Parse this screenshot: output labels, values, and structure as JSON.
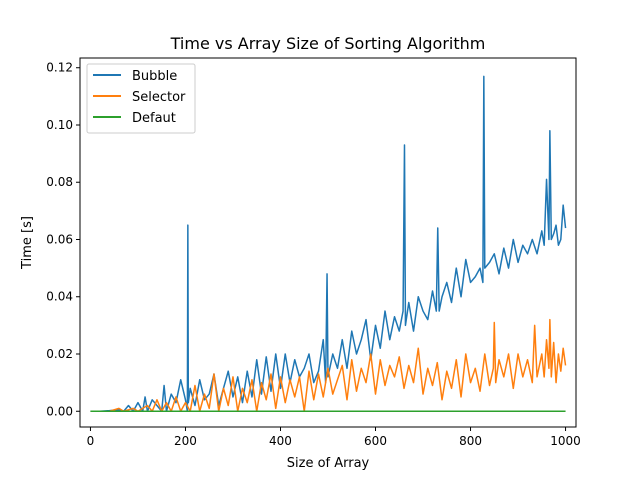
{
  "chart_data": {
    "type": "line",
    "title": "Time vs Array Size of Sorting Algorithm",
    "xlabel": "Size of Array",
    "ylabel": "Time [s]",
    "xlim": [
      -22,
      1022
    ],
    "ylim": [
      -0.0055,
      0.1234
    ],
    "xticks": [
      {
        "value": 0,
        "label": "0"
      },
      {
        "value": 200,
        "label": "200"
      },
      {
        "value": 400,
        "label": "400"
      },
      {
        "value": 600,
        "label": "600"
      },
      {
        "value": 800,
        "label": "800"
      },
      {
        "value": 1000,
        "label": "1000"
      }
    ],
    "yticks": [
      {
        "value": 0.0,
        "label": "0.00"
      },
      {
        "value": 0.02,
        "label": "0.02"
      },
      {
        "value": 0.04,
        "label": "0.04"
      },
      {
        "value": 0.06,
        "label": "0.06"
      },
      {
        "value": 0.08,
        "label": "0.08"
      },
      {
        "value": 0.1,
        "label": "0.10"
      },
      {
        "value": 0.12,
        "label": "0.12"
      }
    ],
    "grid": false,
    "legend_position": "top-left",
    "series": [
      {
        "name": "Bubble",
        "color": "#1f77b4",
        "points": [
          [
            0,
            0
          ],
          [
            20,
            0
          ],
          [
            40,
            0.0002
          ],
          [
            60,
            0.0005
          ],
          [
            70,
            0
          ],
          [
            80,
            0.002
          ],
          [
            90,
            0
          ],
          [
            100,
            0.003
          ],
          [
            110,
            0
          ],
          [
            115,
            0.005
          ],
          [
            120,
            0
          ],
          [
            130,
            0.004
          ],
          [
            140,
            0.002
          ],
          [
            150,
            0
          ],
          [
            155,
            0.009
          ],
          [
            160,
            0
          ],
          [
            170,
            0.006
          ],
          [
            180,
            0.003
          ],
          [
            190,
            0.011
          ],
          [
            200,
            0.004
          ],
          [
            204,
            0
          ],
          [
            205,
            0.065
          ],
          [
            206,
            0.003
          ],
          [
            210,
            0.008
          ],
          [
            220,
            0.002
          ],
          [
            230,
            0.011
          ],
          [
            240,
            0.004
          ],
          [
            250,
            0.006
          ],
          [
            260,
            0.013
          ],
          [
            270,
            0.002
          ],
          [
            280,
            0.008
          ],
          [
            290,
            0.014
          ],
          [
            300,
            0.005
          ],
          [
            310,
            0.012
          ],
          [
            320,
            0.003
          ],
          [
            330,
            0.014
          ],
          [
            340,
            0.005
          ],
          [
            350,
            0.018
          ],
          [
            360,
            0.006
          ],
          [
            370,
            0.019
          ],
          [
            380,
            0.007
          ],
          [
            390,
            0.02
          ],
          [
            400,
            0.008
          ],
          [
            410,
            0.02
          ],
          [
            420,
            0.01
          ],
          [
            430,
            0.018
          ],
          [
            440,
            0.012
          ],
          [
            450,
            0.015
          ],
          [
            460,
            0.02
          ],
          [
            470,
            0.01
          ],
          [
            480,
            0.014
          ],
          [
            490,
            0.025
          ],
          [
            495,
            0.01
          ],
          [
            498,
            0.048
          ],
          [
            500,
            0.012
          ],
          [
            510,
            0.02
          ],
          [
            520,
            0.015
          ],
          [
            530,
            0.025
          ],
          [
            540,
            0.015
          ],
          [
            550,
            0.028
          ],
          [
            560,
            0.02
          ],
          [
            570,
            0.025
          ],
          [
            580,
            0.032
          ],
          [
            590,
            0.018
          ],
          [
            600,
            0.03
          ],
          [
            610,
            0.022
          ],
          [
            620,
            0.035
          ],
          [
            630,
            0.025
          ],
          [
            640,
            0.033
          ],
          [
            650,
            0.028
          ],
          [
            658,
            0.035
          ],
          [
            661,
            0.093
          ],
          [
            663,
            0.03
          ],
          [
            670,
            0.038
          ],
          [
            680,
            0.028
          ],
          [
            690,
            0.04
          ],
          [
            700,
            0.035
          ],
          [
            710,
            0.032
          ],
          [
            720,
            0.042
          ],
          [
            728,
            0.035
          ],
          [
            731,
            0.064
          ],
          [
            734,
            0.035
          ],
          [
            740,
            0.04
          ],
          [
            750,
            0.045
          ],
          [
            760,
            0.038
          ],
          [
            770,
            0.05
          ],
          [
            780,
            0.04
          ],
          [
            790,
            0.053
          ],
          [
            800,
            0.045
          ],
          [
            810,
            0.047
          ],
          [
            820,
            0.05
          ],
          [
            826,
            0.045
          ],
          [
            828,
            0.117
          ],
          [
            830,
            0.05
          ],
          [
            840,
            0.052
          ],
          [
            850,
            0.055
          ],
          [
            860,
            0.048
          ],
          [
            870,
            0.057
          ],
          [
            880,
            0.05
          ],
          [
            890,
            0.06
          ],
          [
            900,
            0.052
          ],
          [
            910,
            0.058
          ],
          [
            920,
            0.055
          ],
          [
            930,
            0.06
          ],
          [
            940,
            0.055
          ],
          [
            950,
            0.063
          ],
          [
            955,
            0.058
          ],
          [
            960,
            0.081
          ],
          [
            965,
            0.06
          ],
          [
            967,
            0.098
          ],
          [
            970,
            0.06
          ],
          [
            975,
            0.062
          ],
          [
            980,
            0.065
          ],
          [
            985,
            0.058
          ],
          [
            990,
            0.06
          ],
          [
            995,
            0.072
          ],
          [
            1000,
            0.064
          ]
        ]
      },
      {
        "name": "Selector",
        "color": "#ff7f0e",
        "points": [
          [
            0,
            0
          ],
          [
            40,
            0
          ],
          [
            60,
            0.001
          ],
          [
            70,
            0
          ],
          [
            90,
            0.001
          ],
          [
            100,
            0
          ],
          [
            120,
            0.002
          ],
          [
            130,
            0
          ],
          [
            140,
            0.004
          ],
          [
            150,
            0
          ],
          [
            160,
            0.003
          ],
          [
            170,
            0
          ],
          [
            180,
            0.005
          ],
          [
            190,
            0
          ],
          [
            200,
            0.003
          ],
          [
            210,
            0
          ],
          [
            220,
            0.009
          ],
          [
            230,
            0
          ],
          [
            240,
            0.006
          ],
          [
            250,
            0.001
          ],
          [
            260,
            0.013
          ],
          [
            270,
            0
          ],
          [
            280,
            0.008
          ],
          [
            290,
            0.002
          ],
          [
            300,
            0.012
          ],
          [
            310,
            0
          ],
          [
            320,
            0.008
          ],
          [
            330,
            0.003
          ],
          [
            340,
            0.011
          ],
          [
            350,
            0
          ],
          [
            360,
            0.01
          ],
          [
            370,
            0.004
          ],
          [
            380,
            0.013
          ],
          [
            390,
            0.001
          ],
          [
            400,
            0.012
          ],
          [
            410,
            0.003
          ],
          [
            420,
            0.011
          ],
          [
            430,
            0.005
          ],
          [
            440,
            0.012
          ],
          [
            450,
            0
          ],
          [
            460,
            0.014
          ],
          [
            470,
            0.004
          ],
          [
            480,
            0.013
          ],
          [
            490,
            0.005
          ],
          [
            500,
            0.015
          ],
          [
            510,
            0.006
          ],
          [
            520,
            0.011
          ],
          [
            530,
            0.016
          ],
          [
            540,
            0.004
          ],
          [
            550,
            0.018
          ],
          [
            560,
            0.007
          ],
          [
            570,
            0.015
          ],
          [
            580,
            0.01
          ],
          [
            590,
            0.02
          ],
          [
            600,
            0.006
          ],
          [
            610,
            0.018
          ],
          [
            620,
            0.009
          ],
          [
            630,
            0.016
          ],
          [
            640,
            0.012
          ],
          [
            650,
            0.019
          ],
          [
            660,
            0.008
          ],
          [
            670,
            0.016
          ],
          [
            680,
            0.01
          ],
          [
            690,
            0.022
          ],
          [
            700,
            0.006
          ],
          [
            710,
            0.015
          ],
          [
            720,
            0.009
          ],
          [
            730,
            0.017
          ],
          [
            740,
            0.004
          ],
          [
            750,
            0.014
          ],
          [
            760,
            0.008
          ],
          [
            770,
            0.018
          ],
          [
            780,
            0.005
          ],
          [
            790,
            0.02
          ],
          [
            800,
            0.01
          ],
          [
            810,
            0.015
          ],
          [
            820,
            0.007
          ],
          [
            830,
            0.02
          ],
          [
            840,
            0.009
          ],
          [
            848,
            0.015
          ],
          [
            850,
            0.031
          ],
          [
            853,
            0.01
          ],
          [
            860,
            0.018
          ],
          [
            870,
            0.012
          ],
          [
            880,
            0.02
          ],
          [
            890,
            0.008
          ],
          [
            900,
            0.02
          ],
          [
            910,
            0.012
          ],
          [
            920,
            0.018
          ],
          [
            930,
            0.01
          ],
          [
            935,
            0.03
          ],
          [
            940,
            0.012
          ],
          [
            950,
            0.02
          ],
          [
            955,
            0.012
          ],
          [
            960,
            0.025
          ],
          [
            965,
            0.015
          ],
          [
            967,
            0.032
          ],
          [
            970,
            0.012
          ],
          [
            975,
            0.024
          ],
          [
            980,
            0.01
          ],
          [
            985,
            0.02
          ],
          [
            990,
            0.014
          ],
          [
            995,
            0.022
          ],
          [
            1000,
            0.016
          ]
        ]
      },
      {
        "name": "Defaut",
        "color": "#2ca02c",
        "points": [
          [
            0,
            0
          ],
          [
            1000,
            0
          ]
        ]
      }
    ]
  }
}
